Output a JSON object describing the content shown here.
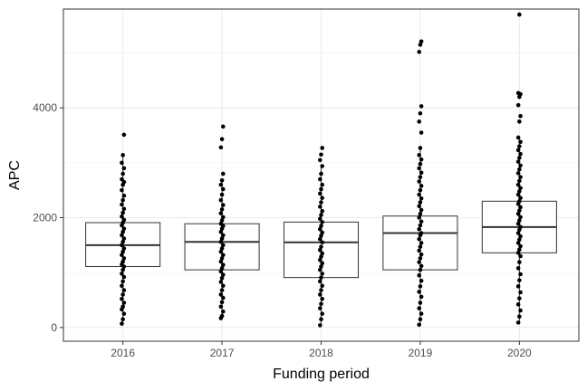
{
  "chart_data": {
    "type": "boxplot",
    "title": "",
    "xlabel": "Funding period",
    "ylabel": "APC",
    "categories": [
      "2016",
      "2017",
      "2018",
      "2019",
      "2020"
    ],
    "ylim": [
      -250,
      5800
    ],
    "y_ticks": [
      0,
      2000,
      4000
    ],
    "grid": true,
    "boxes": [
      {
        "category": "2016",
        "q1": 1110,
        "median": 1500,
        "q3": 1910,
        "min": 70,
        "max": 3140
      },
      {
        "category": "2017",
        "q1": 1050,
        "median": 1560,
        "q3": 1890,
        "min": 170,
        "max": 2680
      },
      {
        "category": "2018",
        "q1": 910,
        "median": 1550,
        "q3": 1920,
        "min": 40,
        "max": 2940
      },
      {
        "category": "2019",
        "q1": 1050,
        "median": 1720,
        "q3": 2030,
        "min": 50,
        "max": 3270
      },
      {
        "category": "2020",
        "q1": 1360,
        "median": 1830,
        "q3": 2300,
        "min": 90,
        "max": 3460
      }
    ],
    "points": [
      {
        "category": "2016",
        "values": [
          70,
          150,
          250,
          330,
          380,
          450,
          520,
          600,
          680,
          760,
          840,
          920,
          980,
          1050,
          1110,
          1150,
          1200,
          1260,
          1320,
          1380,
          1440,
          1500,
          1560,
          1620,
          1680,
          1740,
          1800,
          1860,
          1910,
          1960,
          2020,
          2090,
          2160,
          2240,
          2320,
          2400,
          2500,
          2600,
          2650,
          2700,
          2800,
          2900,
          3000,
          3140,
          3510
        ]
      },
      {
        "category": "2017",
        "values": [
          170,
          210,
          290,
          380,
          460,
          540,
          600,
          680,
          760,
          830,
          900,
          960,
          1020,
          1080,
          1140,
          1200,
          1260,
          1320,
          1380,
          1440,
          1500,
          1560,
          1620,
          1680,
          1740,
          1800,
          1850,
          1890,
          1950,
          2010,
          2080,
          2150,
          2230,
          2320,
          2420,
          2520,
          2600,
          2680,
          2800,
          3280,
          3430,
          3660
        ]
      },
      {
        "category": "2018",
        "values": [
          40,
          150,
          250,
          350,
          430,
          520,
          600,
          680,
          760,
          840,
          910,
          980,
          1050,
          1110,
          1170,
          1230,
          1290,
          1350,
          1410,
          1470,
          1550,
          1610,
          1670,
          1730,
          1790,
          1850,
          1920,
          1980,
          2050,
          2120,
          2200,
          2280,
          2360,
          2440,
          2520,
          2600,
          2700,
          2800,
          2940,
          3050,
          3150,
          3270
        ]
      },
      {
        "category": "2019",
        "values": [
          50,
          150,
          250,
          350,
          450,
          560,
          650,
          750,
          850,
          950,
          1050,
          1120,
          1190,
          1260,
          1330,
          1400,
          1470,
          1540,
          1610,
          1680,
          1720,
          1790,
          1860,
          1930,
          2000,
          2070,
          2140,
          2210,
          2280,
          2350,
          2420,
          2500,
          2580,
          2660,
          2740,
          2820,
          2900,
          2980,
          3060,
          3140,
          3270,
          3550,
          3750,
          3900,
          4030,
          5020,
          5150,
          5210
        ]
      },
      {
        "category": "2020",
        "values": [
          90,
          200,
          310,
          420,
          530,
          640,
          750,
          860,
          970,
          1080,
          1190,
          1300,
          1360,
          1420,
          1480,
          1540,
          1600,
          1660,
          1720,
          1780,
          1830,
          1890,
          1950,
          2010,
          2070,
          2130,
          2190,
          2250,
          2300,
          2360,
          2420,
          2480,
          2540,
          2600,
          2670,
          2740,
          2810,
          2880,
          2950,
          3020,
          3090,
          3160,
          3230,
          3300,
          3380,
          3460,
          3750,
          3850,
          4050,
          4200,
          4250,
          4270,
          5700
        ]
      }
    ]
  }
}
